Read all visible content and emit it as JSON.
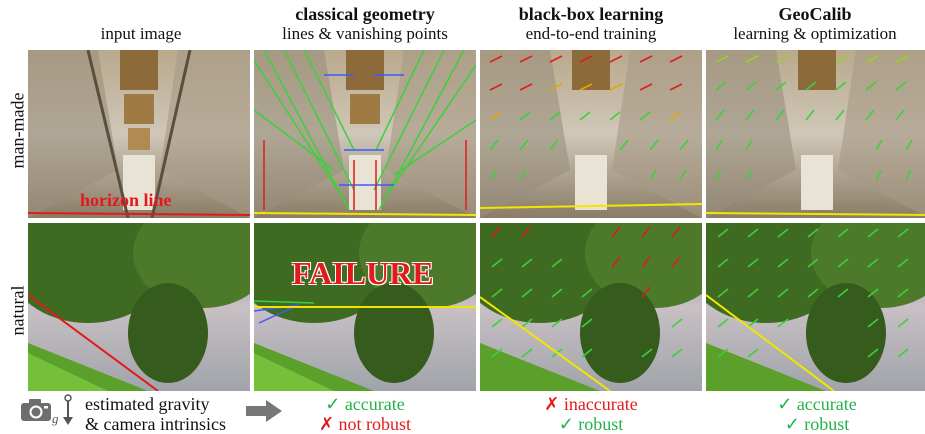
{
  "columns": [
    {
      "title": "",
      "subtitle": "input image"
    },
    {
      "title": "classical geometry",
      "subtitle": "lines & vanishing points"
    },
    {
      "title": "black-box learning",
      "subtitle": "end-to-end training"
    },
    {
      "title": "GeoCalib",
      "subtitle": "learning & optimization"
    }
  ],
  "rows": [
    "man-made",
    "natural"
  ],
  "overlays": {
    "horizon": "horizon line",
    "failure": "FAILURE"
  },
  "footer": {
    "caption_line1": "estimated gravity",
    "caption_line2": "& camera intrinsics",
    "camera_icon": "camera-icon",
    "gravity_icon": "gravity-arrow-icon",
    "gravity_symbol": "g",
    "arrow_icon": "right-arrow-icon",
    "results": [
      {
        "line1": "✓ accurate",
        "line2": "✗ not robust",
        "c1": "#22b34a",
        "c2": "#e31a1c"
      },
      {
        "line1": "✗ inaccurate",
        "line2": "✓ robust",
        "c1": "#e31a1c",
        "c2": "#22b34a"
      },
      {
        "line1": "✓ accurate",
        "line2": "✓ robust",
        "c1": "#22b34a",
        "c2": "#22b34a"
      }
    ]
  }
}
